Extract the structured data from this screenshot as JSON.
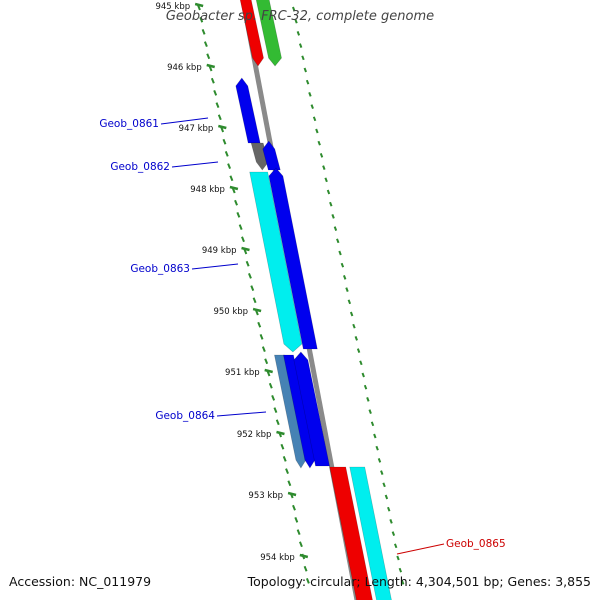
{
  "title": "Geobacter sp. FRC-32, complete genome",
  "footer": {
    "accession": "Accession: NC_011979",
    "summary": "Topology: circular; Length: 4,304,501 bp; Genes: 3,855"
  },
  "ticks": [
    "945 kbp",
    "946 kbp",
    "947 kbp",
    "948 kbp",
    "949 kbp",
    "950 kbp",
    "951 kbp",
    "952 kbp",
    "953 kbp",
    "954 kbp"
  ],
  "gene_labels": [
    {
      "name": "Geob_0861",
      "color": "#0000cc"
    },
    {
      "name": "Geob_0862",
      "color": "#0000cc"
    },
    {
      "name": "Geob_0863",
      "color": "#0000cc"
    },
    {
      "name": "Geob_0864",
      "color": "#0000cc"
    },
    {
      "name": "Geob_0865",
      "color": "#cc0000"
    }
  ],
  "colors": {
    "tick": "#2e8b2e",
    "backbone": "#8a8a8a",
    "blue": "#0000ee",
    "cyan": "#00eeee",
    "red": "#ee0000",
    "green": "#33bb33",
    "grey": "#666666",
    "steel": "#4682b4"
  }
}
